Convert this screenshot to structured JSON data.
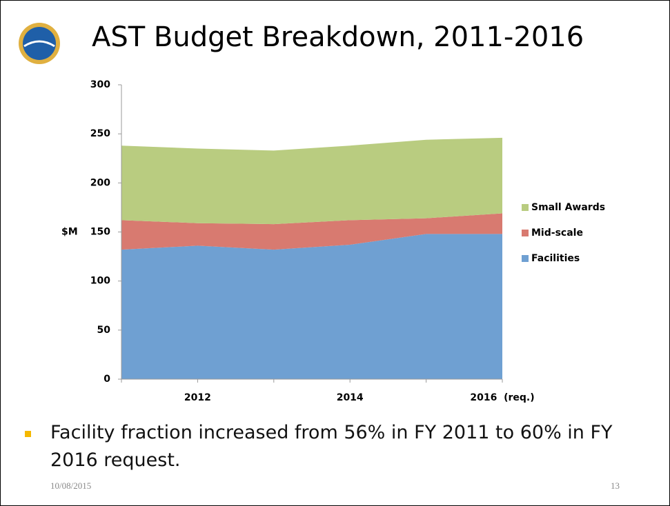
{
  "title": "AST Budget Breakdown, 2011-2016",
  "chart_data": {
    "type": "area",
    "ylabel": "$M",
    "categories": [
      null,
      "2012",
      null,
      "2014",
      null,
      "2016  (req.)"
    ],
    "series": [
      {
        "name": "Facilities",
        "color": "#6fa0d2",
        "values": [
          132,
          136,
          132,
          137,
          148,
          148
        ]
      },
      {
        "name": "Mid-scale",
        "color": "#d87a70",
        "values": [
          30,
          23,
          26,
          25,
          16,
          21
        ]
      },
      {
        "name": "Small Awards",
        "color": "#b9cc80",
        "values": [
          76,
          76,
          75,
          76,
          80,
          77
        ]
      }
    ],
    "ylim": [
      0,
      300
    ],
    "yticks": [
      0,
      50,
      100,
      150,
      200,
      250,
      300
    ]
  },
  "bullet": "Facility fraction increased from 56% in FY 2011 to 60% in FY 2016 request.",
  "footer": {
    "date": "10/08/2015",
    "page": "13"
  }
}
